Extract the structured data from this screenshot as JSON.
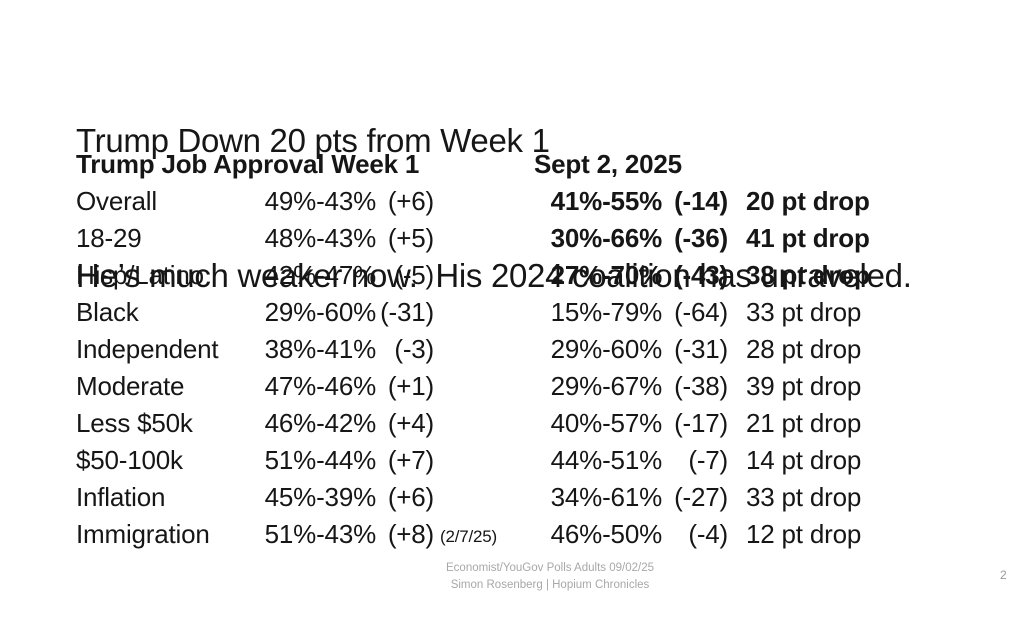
{
  "slide": {
    "title_line1": "Trump Down 20 pts from Week 1",
    "title_line2": "He’s much weaker now.  His 2024 coalition has unraveled.",
    "table": {
      "left_header": "Trump Job Approval Week 1",
      "right_header": "Sept 2, 2025",
      "rows": [
        {
          "label": "Overall",
          "week1": "49%-43%",
          "week1_margin": "(+6)",
          "note": "",
          "sept": "41%-55%",
          "sept_margin": "(-14)",
          "drop": "20 pt drop",
          "highlight": true
        },
        {
          "label": "18-29",
          "week1": "48%-43%",
          "week1_margin": "(+5)",
          "note": "",
          "sept": "30%-66%",
          "sept_margin": "(-36)",
          "drop": "41 pt drop",
          "highlight": true
        },
        {
          "label": "Hisp/Latino",
          "week1": "42%-47%",
          "week1_margin": "(-5)",
          "note": "",
          "sept": "27%-70%",
          "sept_margin": "(-43)",
          "drop": "38 pt drop",
          "highlight": true
        },
        {
          "label": "Black",
          "week1": "29%-60%",
          "week1_margin": "(-31)",
          "note": "",
          "sept": "15%-79%",
          "sept_margin": "(-64)",
          "drop": "33 pt drop",
          "highlight": false
        },
        {
          "label": "Independent",
          "week1": "38%-41%",
          "week1_margin": "(-3)",
          "note": "",
          "sept": "29%-60%",
          "sept_margin": "(-31)",
          "drop": "28 pt drop",
          "highlight": false
        },
        {
          "label": "Moderate",
          "week1": "47%-46%",
          "week1_margin": "(+1)",
          "note": "",
          "sept": "29%-67%",
          "sept_margin": "(-38)",
          "drop": "39 pt drop",
          "highlight": false
        },
        {
          "label": "Less $50k",
          "week1": "46%-42%",
          "week1_margin": "(+4)",
          "note": "",
          "sept": "40%-57%",
          "sept_margin": "(-17)",
          "drop": "21 pt drop",
          "highlight": false
        },
        {
          "label": "$50-100k",
          "week1": "51%-44%",
          "week1_margin": "(+7)",
          "note": "",
          "sept": "44%-51%",
          "sept_margin": "(-7)",
          "drop": "14 pt drop",
          "highlight": false
        },
        {
          "label": "Inflation",
          "week1": "45%-39%",
          "week1_margin": "(+6)",
          "note": "",
          "sept": "34%-61%",
          "sept_margin": "(-27)",
          "drop": "33 pt drop",
          "highlight": false
        },
        {
          "label": "Immigration",
          "week1": "51%-43%",
          "week1_margin": "(+8)",
          "note": "(2/7/25)",
          "sept": "46%-50%",
          "sept_margin": "(-4)",
          "drop": "12 pt drop",
          "highlight": false
        }
      ]
    },
    "footer_line1": "Economist/YouGov Polls Adults 09/02/25",
    "footer_line2": "Simon Rosenberg | Hopium Chronicles",
    "page_number": "2",
    "colors": {
      "text": "#161616",
      "muted": "#a8a8a8",
      "background": "#ffffff"
    }
  }
}
